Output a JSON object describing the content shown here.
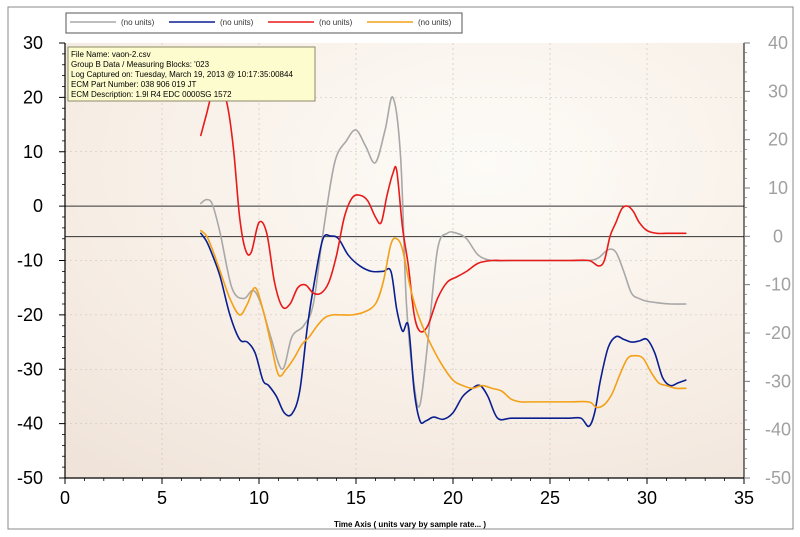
{
  "chart_data": {
    "type": "line",
    "xlabel": "Time Axis ( units vary by sample rate... )",
    "xlim": [
      0,
      35
    ],
    "x_ticks": [
      "0",
      "5",
      "10",
      "15",
      "20",
      "25",
      "30",
      "35"
    ],
    "ylim_left": [
      -50,
      30
    ],
    "y_ticks_left": [
      "30",
      "20",
      "10",
      "0",
      "-10",
      "-20",
      "-30",
      "-40",
      "-50"
    ],
    "ylim_right": [
      -50,
      40
    ],
    "y_ticks_right": [
      "40",
      "30",
      "20",
      "10",
      "0",
      "-10",
      "-20",
      "-30",
      "-40",
      "-50"
    ],
    "reference_lines_left_axis": [
      0,
      -5.6
    ],
    "legend": {
      "placement": "top",
      "entries": [
        "(no units)",
        "(no units)",
        "(no units)",
        "(no units)"
      ]
    },
    "info_box": {
      "lines": [
        "File Name: vaon-2.csv",
        "Group B Data / Measuring Blocks: '023",
        "Log Captured on: Tuesday, March 19, 2013 @ 10:17:35:00844",
        "ECM Part Number: 038 906 019 JT",
        "ECM Description: 1.9l R4 EDC 0000SG 1572"
      ]
    },
    "series": [
      {
        "color": "#a8a8a8",
        "x": [
          7,
          7.3,
          7.6,
          8,
          8.6,
          9.2,
          9.7,
          10.1,
          10.6,
          11.2,
          11.7,
          12.3,
          12.8,
          13.3,
          13.9,
          14.5,
          15,
          15.5,
          16,
          16.5,
          16.9,
          17.3,
          17.6,
          18,
          18.3,
          18.7,
          19.2,
          19.7,
          20.2,
          20.7,
          21.3,
          22,
          23,
          24,
          25,
          26,
          27,
          27.5,
          28,
          28.4,
          28.8,
          29.2,
          29.6,
          30,
          30.6,
          31.2,
          32
        ],
        "y": [
          0.5,
          1.2,
          0.3,
          -5,
          -15,
          -17,
          -15.5,
          -18,
          -24,
          -30,
          -24,
          -22,
          -18,
          -5,
          8,
          12,
          14,
          11,
          8,
          14,
          20,
          9,
          -18,
          -33,
          -36.5,
          -25,
          -8,
          -5,
          -5,
          -6,
          -9,
          -10,
          -10,
          -10,
          -10,
          -10,
          -10,
          -9.5,
          -8,
          -8.5,
          -12,
          -16,
          -17,
          -17.5,
          -17.8,
          -18,
          -18
        ]
      },
      {
        "color": "#0a1f8f",
        "x": [
          7,
          7.3,
          7.6,
          8,
          8.5,
          9,
          9.4,
          9.8,
          10.2,
          10.5,
          10.9,
          11.3,
          11.7,
          12.1,
          12.5,
          12.9,
          13.3,
          13.7,
          14.1,
          14.6,
          15.2,
          15.8,
          16.4,
          16.8,
          17.1,
          17.4,
          17.7,
          18,
          18.3,
          18.6,
          19,
          19.5,
          20,
          20.5,
          21,
          21.4,
          21.8,
          22.3,
          23,
          24,
          25,
          26,
          26.6,
          27,
          27.3,
          27.6,
          28,
          28.4,
          28.8,
          29.2,
          29.6,
          30,
          30.4,
          30.8,
          31.2,
          31.6,
          32
        ],
        "y": [
          -5,
          -6.5,
          -9,
          -13,
          -20,
          -24.5,
          -25,
          -27,
          -32,
          -33,
          -35,
          -38,
          -38.2,
          -34,
          -22,
          -13,
          -6,
          -5.5,
          -6,
          -9,
          -11,
          -12,
          -12,
          -12,
          -19,
          -23,
          -22,
          -34,
          -39.5,
          -39.5,
          -38.8,
          -39.2,
          -38,
          -35,
          -33.5,
          -33,
          -35,
          -39,
          -39,
          -39,
          -39,
          -39,
          -39,
          -40.5,
          -38,
          -32,
          -26,
          -24,
          -24.5,
          -25,
          -24.8,
          -24.5,
          -27,
          -31.5,
          -33,
          -32.5,
          -32
        ]
      },
      {
        "color": "#e81a1a",
        "x": [
          7,
          7.3,
          7.6,
          8,
          8.4,
          8.7,
          9,
          9.3,
          9.6,
          10,
          10.4,
          10.8,
          11.2,
          11.6,
          12,
          12.4,
          12.8,
          13.2,
          13.6,
          14,
          14.4,
          14.8,
          15.2,
          15.6,
          16,
          16.3,
          16.6,
          16.9,
          17.1,
          17.4,
          17.7,
          18,
          18.3,
          18.7,
          19.2,
          19.7,
          20.2,
          20.7,
          21.3,
          22,
          22.5,
          23,
          24,
          25,
          26,
          27,
          27.5,
          27.8,
          28.1,
          28.4,
          28.7,
          29,
          29.3,
          29.6,
          30,
          30.5,
          31,
          31.5,
          32
        ],
        "y": [
          13,
          17,
          21,
          23,
          18,
          10,
          -2,
          -8,
          -8.5,
          -3,
          -5,
          -14,
          -18.5,
          -18,
          -15,
          -14.5,
          -16,
          -16,
          -14,
          -9,
          -2,
          1.5,
          2,
          1,
          -2,
          -3,
          2,
          6,
          6.5,
          -4,
          -11,
          -20,
          -23,
          -22,
          -17,
          -14,
          -13,
          -12,
          -10.5,
          -10,
          -10,
          -10,
          -10,
          -10,
          -10,
          -10,
          -11,
          -10,
          -5.5,
          -3,
          -0.5,
          0,
          -1,
          -3,
          -4.5,
          -5,
          -5,
          -5,
          -5
        ]
      },
      {
        "color": "#f4a017",
        "x": [
          7,
          7.3,
          7.6,
          8,
          8.5,
          9,
          9.4,
          9.8,
          10.2,
          10.6,
          11,
          11.4,
          11.8,
          12.2,
          12.6,
          13,
          13.4,
          13.8,
          14.2,
          14.8,
          15.4,
          16,
          16.4,
          16.8,
          17.1,
          17.4,
          17.8,
          18.2,
          18.8,
          19.4,
          20,
          20.5,
          21,
          21.5,
          22,
          22.5,
          23,
          23.5,
          24,
          25,
          26,
          27,
          27.4,
          27.8,
          28.2,
          28.6,
          29,
          29.4,
          29.8,
          30.2,
          30.6,
          31,
          31.5,
          32
        ],
        "y": [
          -4.5,
          -5.5,
          -8,
          -12,
          -17,
          -20,
          -18,
          -15,
          -19,
          -25,
          -31,
          -30,
          -28,
          -25.5,
          -24,
          -22,
          -20.5,
          -20,
          -20,
          -20,
          -19.5,
          -18,
          -14,
          -7,
          -6,
          -8,
          -15,
          -20,
          -25,
          -29,
          -32,
          -33,
          -33.5,
          -33,
          -33.5,
          -34,
          -35.5,
          -36,
          -36,
          -36,
          -36,
          -36,
          -37,
          -36.5,
          -34.5,
          -31,
          -28,
          -27.5,
          -28,
          -30.5,
          -32.5,
          -33,
          -33.5,
          -33.5
        ]
      }
    ]
  }
}
